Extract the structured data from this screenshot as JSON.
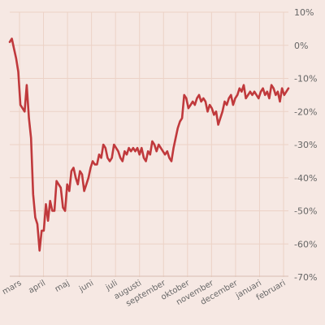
{
  "colors": {
    "background": "#f6e8e3",
    "grid": "#ecd2c6",
    "line": "#c0393c"
  },
  "chart_data": {
    "type": "line",
    "title": "",
    "xlabel": "",
    "ylabel": "",
    "ylim": [
      -70,
      10
    ],
    "y_ticks": [
      10,
      0,
      -10,
      -20,
      -30,
      -40,
      -50,
      -60,
      -70
    ],
    "y_tick_labels": [
      "10%",
      "0%",
      "-10%",
      "-20%",
      "-30%",
      "-40%",
      "-50%",
      "-60%",
      "-70%"
    ],
    "x_tick_labels": [
      "mars",
      "april",
      "maj",
      "juni",
      "juli",
      "augusti",
      "september",
      "oktober",
      "november",
      "december",
      "januari",
      "februari"
    ],
    "grid": true,
    "legend": "none",
    "series": [
      {
        "values": [
          1,
          2,
          -1,
          -4,
          -8,
          -18,
          -19,
          -20,
          -12,
          -22,
          -28,
          -45,
          -52,
          -54,
          -62,
          -56,
          -56,
          -48,
          -53,
          -47,
          -50,
          -50,
          -41,
          -42,
          -43,
          -49,
          -50,
          -42,
          -44,
          -38,
          -37,
          -40,
          -42,
          -38,
          -39,
          -44,
          -42,
          -40,
          -37,
          -35,
          -36,
          -36,
          -33,
          -34,
          -30,
          -31,
          -34,
          -35,
          -34,
          -30,
          -31,
          -32,
          -34,
          -35,
          -32,
          -33,
          -31,
          -32,
          -31,
          -32,
          -31,
          -33,
          -31,
          -34,
          -35,
          -32,
          -33,
          -29,
          -30,
          -32,
          -30,
          -31,
          -32,
          -33,
          -32,
          -34,
          -35,
          -31,
          -28,
          -25,
          -23,
          -22,
          -15,
          -16,
          -19,
          -18,
          -17,
          -18,
          -16,
          -15,
          -17,
          -16,
          -17,
          -20,
          -18,
          -19,
          -21,
          -20,
          -24,
          -22,
          -20,
          -17,
          -18,
          -16,
          -15,
          -18,
          -16,
          -15,
          -13,
          -14,
          -12,
          -16,
          -15,
          -14,
          -15,
          -14,
          -15,
          -16,
          -14,
          -13,
          -15,
          -14,
          -16,
          -12,
          -13,
          -15,
          -14,
          -17,
          -13,
          -15,
          -14,
          -13
        ]
      }
    ]
  }
}
